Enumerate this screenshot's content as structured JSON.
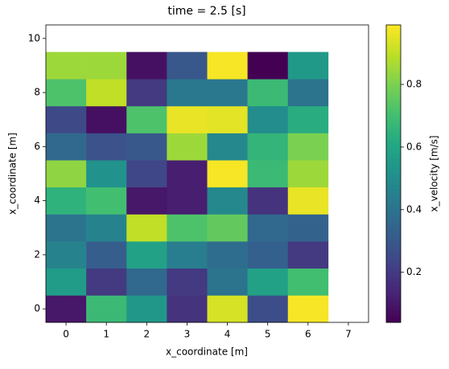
{
  "chart_data": {
    "type": "heatmap",
    "title": "time = 2.5 [s]",
    "x_label": "x_coordinate [m]",
    "y_label": "x_coordinate [m]",
    "x": [
      0,
      1,
      2,
      3,
      4,
      5,
      6,
      7
    ],
    "y": [
      0,
      1,
      2,
      3,
      4,
      5,
      6,
      7,
      8,
      9,
      10
    ],
    "z": [
      [
        0.1,
        0.68,
        0.54,
        0.18,
        0.93,
        0.26,
        0.98
      ],
      [
        0.56,
        0.2,
        0.36,
        0.2,
        0.4,
        0.58,
        0.7
      ],
      [
        0.46,
        0.32,
        0.58,
        0.44,
        0.38,
        0.33,
        0.2
      ],
      [
        0.4,
        0.46,
        0.9,
        0.72,
        0.76,
        0.36,
        0.34
      ],
      [
        0.65,
        0.7,
        0.1,
        0.12,
        0.48,
        0.18,
        0.96
      ],
      [
        0.83,
        0.52,
        0.24,
        0.12,
        0.98,
        0.68,
        0.85
      ],
      [
        0.36,
        0.28,
        0.3,
        0.85,
        0.48,
        0.66,
        0.8
      ],
      [
        0.25,
        0.08,
        0.72,
        0.96,
        0.95,
        0.5,
        0.63
      ],
      [
        0.72,
        0.9,
        0.2,
        0.42,
        0.42,
        0.68,
        0.4
      ],
      [
        0.85,
        0.85,
        0.08,
        0.3,
        0.98,
        0.04,
        0.55
      ]
    ],
    "xlim": [
      -0.5,
      7.5
    ],
    "ylim": [
      -0.5,
      10.5
    ],
    "xticks": [
      0,
      1,
      2,
      3,
      4,
      5,
      6,
      7
    ],
    "yticks": [
      0,
      2,
      4,
      6,
      8,
      10
    ],
    "colormap": "viridis",
    "clim": [
      0.04,
      0.99
    ],
    "cticks": [
      0.2,
      0.4,
      0.6,
      0.8
    ],
    "colorbar_label": "x_velocity [m/s]"
  }
}
